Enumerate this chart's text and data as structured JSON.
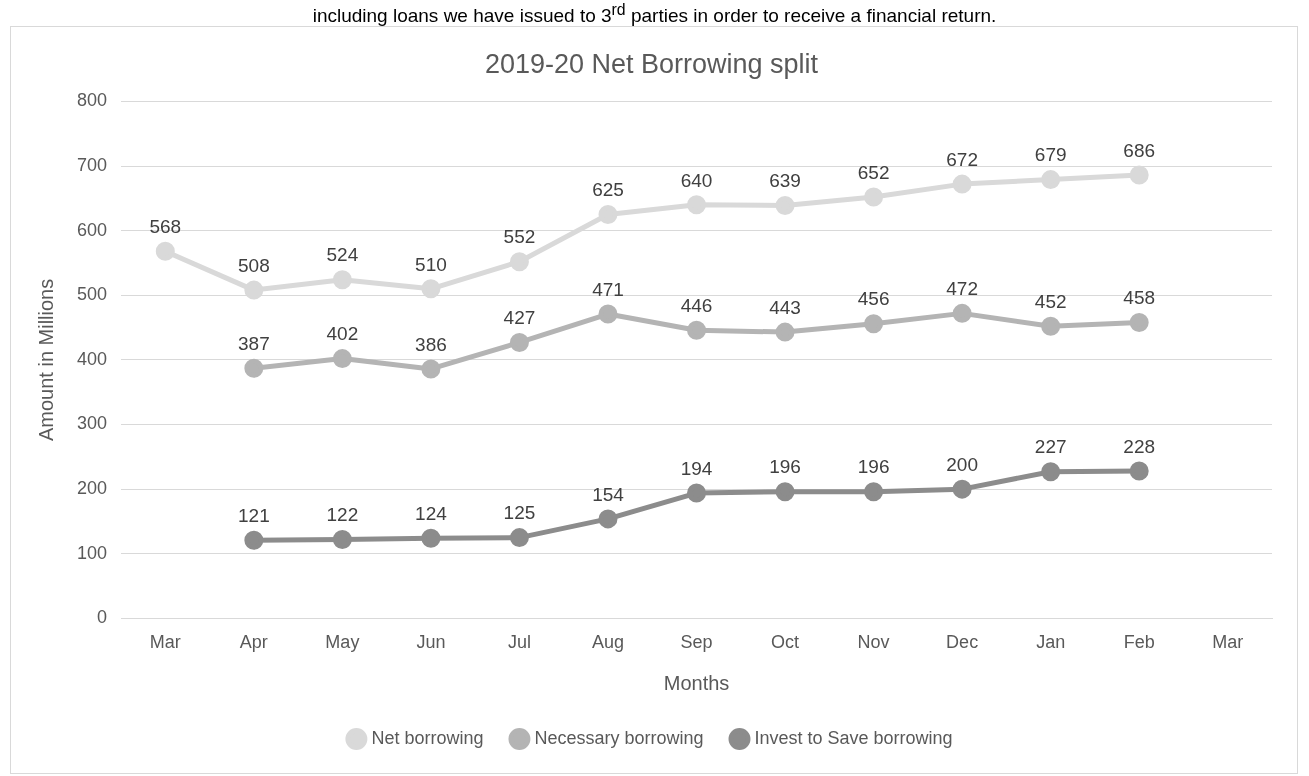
{
  "chart_data": {
    "type": "line",
    "title": "2019-20 Net Borrowing split",
    "xlabel": "Months",
    "ylabel": "Amount in Millions",
    "annotations": [
      "including loans we have issued to 3$^{rd}$ parties in order to receive a financial return."
    ],
    "categories": [
      "Mar",
      "Apr",
      "May",
      "Jun",
      "Jul",
      "Aug",
      "Sep",
      "Oct",
      "Nov",
      "Dec",
      "Jan",
      "Feb",
      "Mar"
    ],
    "series": [
      {
        "name": "Net borrowing",
        "color": "#d9d9d9",
        "values": [
          568,
          508,
          524,
          510,
          552,
          625,
          640,
          639,
          652,
          672,
          679,
          686,
          null
        ]
      },
      {
        "name": "Necessary borrowing",
        "color": "#b4b4b4",
        "values": [
          null,
          387,
          402,
          386,
          427,
          471,
          446,
          443,
          456,
          472,
          452,
          458,
          null
        ]
      },
      {
        "name": "Invest to Save borrowing",
        "color": "#8c8c8c",
        "values": [
          null,
          121,
          122,
          124,
          125,
          154,
          194,
          196,
          196,
          200,
          227,
          228,
          null
        ]
      }
    ],
    "ylim": [
      0,
      800
    ],
    "yticks": [
      0,
      100,
      200,
      300,
      400,
      500,
      600,
      700,
      800
    ],
    "grid": "y",
    "legend": "bottom",
    "marker": "circle",
    "line_style": "solid",
    "data_labels": true
  }
}
